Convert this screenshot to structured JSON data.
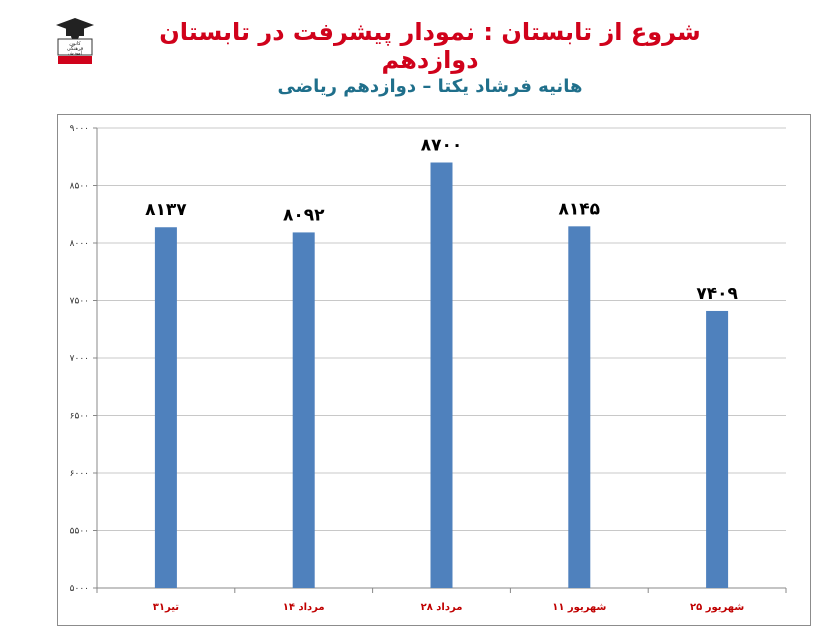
{
  "header": {
    "title": "شروع از تابستان : نمودار پیشرفت در تابستان دوازدهم",
    "subtitle": "هانیه فرشاد یکتا – دوازدهم ریاضی",
    "logo_text": [
      "کانون",
      "فرهنگی",
      "آموزش"
    ]
  },
  "chart_data": {
    "type": "bar",
    "title": "شروع از تابستان : نمودار پیشرفت در تابستان دوازدهم",
    "subtitle": "هانیه فرشاد یکتا – دوازدهم ریاضی",
    "categories": [
      "۳۱تیر",
      "۱۴ مرداد",
      "۲۸ مرداد",
      "۱۱ شهریور",
      "۲۵ شهریور"
    ],
    "values": [
      8137,
      8092,
      8700,
      8145,
      7409
    ],
    "value_labels": [
      "۸۱۳۷",
      "۸۰۹۲",
      "۸۷۰۰",
      "۸۱۴۵",
      "۷۴۰۹"
    ],
    "ylim": [
      5000,
      9000
    ],
    "yticks": [
      5000,
      5500,
      6000,
      6500,
      7000,
      7500,
      8000,
      8500,
      9000
    ],
    "ytick_labels": [
      "۵۰۰۰",
      "۵۵۰۰",
      "۶۰۰۰",
      "۶۵۰۰",
      "۷۰۰۰",
      "۷۵۰۰",
      "۸۰۰۰",
      "۸۵۰۰",
      "۹۰۰۰"
    ],
    "grid": true,
    "bar_color": "#4f81bd",
    "grid_color": "#c8c8c8",
    "category_label_color": "#c00000",
    "xlabel": "",
    "ylabel": ""
  }
}
